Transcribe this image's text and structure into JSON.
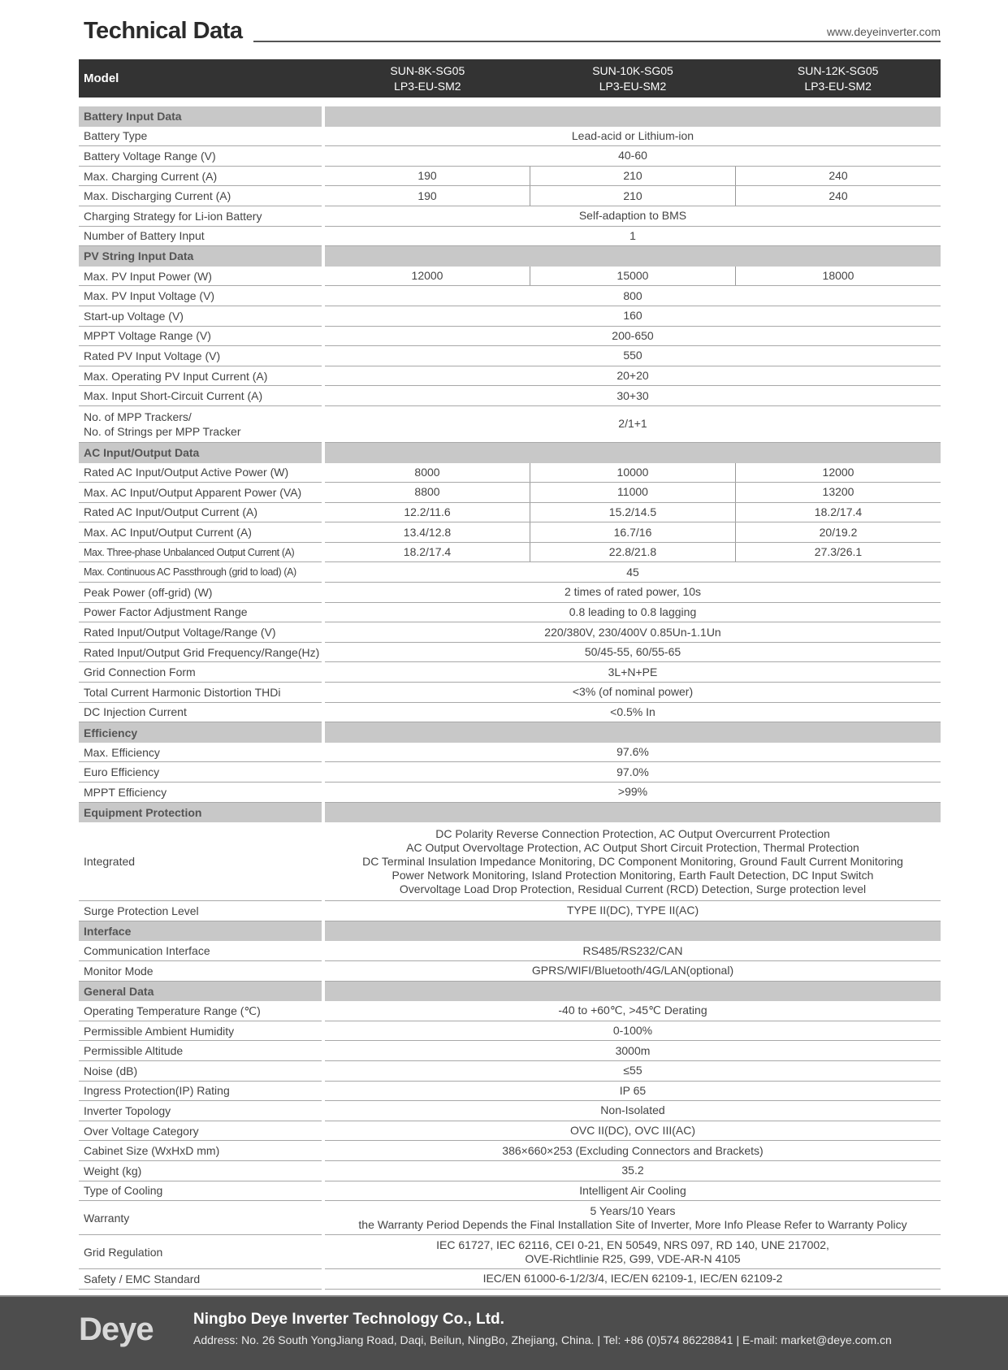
{
  "header": {
    "title": "Technical Data",
    "url": "www.deyeinverter.com"
  },
  "models": {
    "label": "Model",
    "columns": [
      [
        "SUN-8K-SG05",
        "LP3-EU-SM2"
      ],
      [
        "SUN-10K-SG05",
        "LP3-EU-SM2"
      ],
      [
        "SUN-12K-SG05",
        "LP3-EU-SM2"
      ]
    ]
  },
  "sections": [
    {
      "title": "Battery Input Data",
      "rows": [
        {
          "label": [
            "Battery Type"
          ],
          "values": [
            [
              "Lead-acid or Lithium-ion"
            ]
          ]
        },
        {
          "label": [
            "Battery Voltage Range (V)"
          ],
          "values": [
            [
              "40-60"
            ]
          ]
        },
        {
          "label": [
            "Max. Charging Current (A)"
          ],
          "values": [
            [
              "190"
            ],
            [
              "210"
            ],
            [
              "240"
            ]
          ]
        },
        {
          "label": [
            "Max. Discharging Current (A)"
          ],
          "values": [
            [
              "190"
            ],
            [
              "210"
            ],
            [
              "240"
            ]
          ]
        },
        {
          "label": [
            "Charging Strategy for Li-ion Battery"
          ],
          "values": [
            [
              "Self-adaption to BMS"
            ]
          ]
        },
        {
          "label": [
            "Number of Battery Input"
          ],
          "values": [
            [
              "1"
            ]
          ]
        }
      ]
    },
    {
      "title": "PV String Input Data",
      "rows": [
        {
          "label": [
            "Max. PV Input Power (W)"
          ],
          "values": [
            [
              "12000"
            ],
            [
              "15000"
            ],
            [
              "18000"
            ]
          ]
        },
        {
          "label": [
            "Max. PV Input Voltage (V)"
          ],
          "values": [
            [
              "800"
            ]
          ]
        },
        {
          "label": [
            "Start-up Voltage (V)"
          ],
          "values": [
            [
              "160"
            ]
          ]
        },
        {
          "label": [
            "MPPT  Voltage Range (V)"
          ],
          "values": [
            [
              "200-650"
            ]
          ]
        },
        {
          "label": [
            "Rated PV Input Voltage (V)"
          ],
          "values": [
            [
              "550"
            ]
          ]
        },
        {
          "label": [
            "Max. Operating PV Input Current (A)"
          ],
          "values": [
            [
              "20+20"
            ]
          ]
        },
        {
          "label": [
            "Max. Input Short-Circuit Current (A)"
          ],
          "values": [
            [
              "30+30"
            ]
          ]
        },
        {
          "label": [
            "No. of MPP Trackers/",
            "No. of Strings per MPP Tracker"
          ],
          "values": [
            [
              "2/1+1"
            ]
          ]
        }
      ]
    },
    {
      "title": "AC Input/Output Data",
      "rows": [
        {
          "label": [
            "Rated AC Input/Output Active Power (W)"
          ],
          "values": [
            [
              "8000"
            ],
            [
              "10000"
            ],
            [
              "12000"
            ]
          ]
        },
        {
          "label": [
            "Max. AC Input/Output Apparent Power (VA)"
          ],
          "values": [
            [
              "8800"
            ],
            [
              "11000"
            ],
            [
              "13200"
            ]
          ]
        },
        {
          "label": [
            "Rated AC Input/Output Current (A)"
          ],
          "values": [
            [
              "12.2/11.6"
            ],
            [
              "15.2/14.5"
            ],
            [
              "18.2/17.4"
            ]
          ]
        },
        {
          "label": [
            "Max. AC Input/Output Current (A)"
          ],
          "values": [
            [
              "13.4/12.8"
            ],
            [
              "16.7/16"
            ],
            [
              "20/19.2"
            ]
          ]
        },
        {
          "label": [
            "Max. Three-phase Unbalanced Output Current (A)"
          ],
          "values": [
            [
              "18.2/17.4"
            ],
            [
              "22.8/21.8"
            ],
            [
              "27.3/26.1"
            ]
          ]
        },
        {
          "label": [
            "Max. Continuous AC Passthrough (grid to load) (A)"
          ],
          "values": [
            [
              "45"
            ]
          ]
        },
        {
          "label": [
            "Peak Power (off-grid) (W)"
          ],
          "values": [
            [
              "2 times of rated power, 10s"
            ]
          ]
        },
        {
          "label": [
            "Power Factor Adjustment Range"
          ],
          "values": [
            [
              "0.8 leading to 0.8 lagging"
            ]
          ]
        },
        {
          "label": [
            "Rated Input/Output Voltage/Range (V)"
          ],
          "values": [
            [
              "220/380V, 230/400V  0.85Un-1.1Un"
            ]
          ]
        },
        {
          "label": [
            "Rated Input/Output Grid Frequency/Range(Hz)"
          ],
          "values": [
            [
              "50/45-55, 60/55-65"
            ]
          ]
        },
        {
          "label": [
            "Grid Connection Form"
          ],
          "values": [
            [
              "3L+N+PE"
            ]
          ]
        },
        {
          "label": [
            "Total Current Harmonic Distortion THDi"
          ],
          "values": [
            [
              "<3% (of nominal power)"
            ]
          ]
        },
        {
          "label": [
            "DC Injection Current"
          ],
          "values": [
            [
              "<0.5% In"
            ]
          ]
        }
      ]
    },
    {
      "title": "Efficiency",
      "rows": [
        {
          "label": [
            "Max. Efficiency"
          ],
          "values": [
            [
              "97.6%"
            ]
          ]
        },
        {
          "label": [
            "Euro Efficiency"
          ],
          "values": [
            [
              "97.0%"
            ]
          ]
        },
        {
          "label": [
            "MPPT Efficiency"
          ],
          "values": [
            [
              ">99%"
            ]
          ]
        }
      ]
    },
    {
      "title": "Equipment Protection",
      "rows": [
        {
          "label": [
            "Integrated"
          ],
          "values": [
            [
              "DC Polarity Reverse Connection Protection, AC Output Overcurrent Protection",
              "AC Output Overvoltage Protection, AC Output Short Circuit Protection, Thermal Protection",
              "DC Terminal Insulation Impedance Monitoring, DC Component Monitoring, Ground Fault Current Monitoring",
              "Power Network Monitoring, Island Protection Monitoring, Earth Fault Detection, DC Input Switch",
              "Overvoltage Load Drop Protection, Residual Current (RCD) Detection, Surge protection level"
            ]
          ]
        },
        {
          "label": [
            "Surge Protection Level"
          ],
          "values": [
            [
              "TYPE II(DC), TYPE II(AC)"
            ]
          ]
        }
      ]
    },
    {
      "title": "Interface",
      "rows": [
        {
          "label": [
            "Communication Interface"
          ],
          "values": [
            [
              "RS485/RS232/CAN"
            ]
          ]
        },
        {
          "label": [
            "Monitor Mode"
          ],
          "values": [
            [
              "GPRS/WIFI/Bluetooth/4G/LAN(optional)"
            ]
          ]
        }
      ]
    },
    {
      "title": "General Data",
      "rows": [
        {
          "label": [
            "Operating Temperature Range (℃)"
          ],
          "values": [
            [
              "-40 to +60℃, >45℃ Derating"
            ]
          ]
        },
        {
          "label": [
            "Permissible Ambient Humidity"
          ],
          "values": [
            [
              "0-100%"
            ]
          ]
        },
        {
          "label": [
            "Permissible Altitude"
          ],
          "values": [
            [
              "3000m"
            ]
          ]
        },
        {
          "label": [
            "Noise (dB)"
          ],
          "values": [
            [
              "≤55"
            ]
          ]
        },
        {
          "label": [
            "Ingress Protection(IP) Rating"
          ],
          "values": [
            [
              "IP 65"
            ]
          ]
        },
        {
          "label": [
            "Inverter Topology"
          ],
          "values": [
            [
              "Non-Isolated"
            ]
          ]
        },
        {
          "label": [
            "Over Voltage Category"
          ],
          "values": [
            [
              "OVC II(DC), OVC III(AC)"
            ]
          ]
        },
        {
          "label": [
            "Cabinet Size (WxHxD mm)"
          ],
          "values": [
            [
              "386×660×253 (Excluding Connectors and Brackets)"
            ]
          ]
        },
        {
          "label": [
            "Weight (kg)"
          ],
          "values": [
            [
              "35.2"
            ]
          ]
        },
        {
          "label": [
            "Type of Cooling"
          ],
          "values": [
            [
              "Intelligent Air Cooling"
            ]
          ]
        },
        {
          "label": [
            "Warranty"
          ],
          "values": [
            [
              "5 Years/10 Years",
              "the Warranty Period Depends the Final Installation Site of Inverter, More Info Please Refer to Warranty Policy"
            ]
          ]
        },
        {
          "label": [
            "Grid Regulation"
          ],
          "values": [
            [
              "IEC 61727, IEC 62116, CEI 0-21, EN 50549, NRS 097, RD 140, UNE 217002,",
              "OVE-Richtlinie R25, G99, VDE-AR-N 4105"
            ]
          ]
        },
        {
          "label": [
            "Safety / EMC Standard"
          ],
          "values": [
            [
              "IEC/EN 61000-6-1/2/3/4, IEC/EN 62109-1, IEC/EN 62109-2"
            ]
          ]
        }
      ]
    }
  ],
  "footer": {
    "logo": "Deye",
    "company": "Ningbo Deye Inverter Technology Co., Ltd.",
    "address": "Address: No. 26 South YongJiang Road, Daqi, Beilun, NingBo, Zhejiang, China.  |  Tel: +86 (0)574 86228841  |  E-mail: market@deye.com.cn"
  }
}
